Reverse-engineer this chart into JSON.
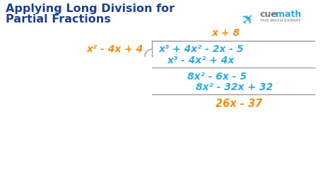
{
  "title_line1": "Applying Long Division for",
  "title_line2": "Partial Fractions",
  "title_color": "#1c3f8f",
  "title_fontsize": 11.5,
  "bg_color": "#ffffff",
  "orange": "#f0900a",
  "blue": "#2baae1",
  "line_color": "#999999",
  "quotient": "x + 8",
  "divisor": "x² - 4x + 4",
  "dividend": "x³ + 4x² - 2x - 5",
  "subtraction1": "x³ - 4x² + 4x",
  "remainder1": "8x² - 6x - 5",
  "subtraction2": "8x² - 32x + 32",
  "remainder2": "26x - 37",
  "cuemath_blue": "#2baae1",
  "cuemath_gray": "#777777",
  "cuemath_orange": "#f0900a"
}
